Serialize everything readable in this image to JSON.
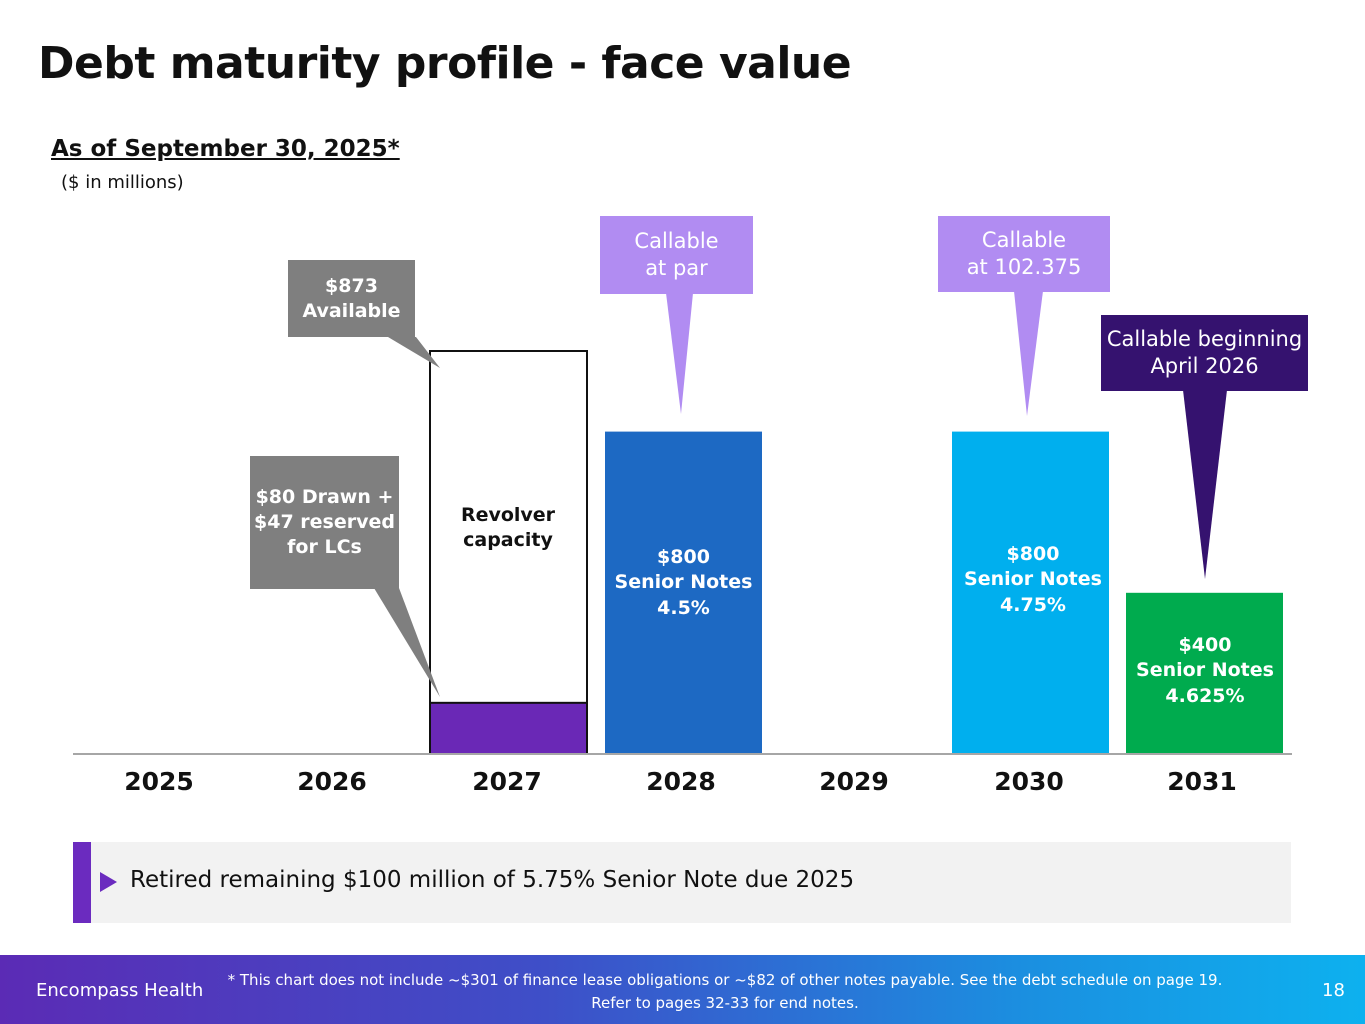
{
  "page": {
    "title": "Debt maturity profile - face value",
    "subtitle": "As of September 30, 2025*",
    "units": "($ in millions)"
  },
  "chart_data": {
    "type": "bar",
    "title": "Debt maturity profile - face value",
    "ylabel": "$ in millions",
    "categories": [
      "2025",
      "2026",
      "2027",
      "2028",
      "2029",
      "2030",
      "2031"
    ],
    "ylim": [
      0,
      1100
    ],
    "series": [
      {
        "name": "Revolver drawn + reserved for LCs",
        "values": [
          0,
          0,
          127,
          0,
          0,
          0,
          0
        ],
        "color": "#6a28b6"
      },
      {
        "name": "Revolver available capacity",
        "values": [
          0,
          0,
          873,
          0,
          0,
          0,
          0
        ],
        "color": "#ffffff"
      },
      {
        "name": "$800 Senior Notes 4.5%",
        "values": [
          0,
          0,
          0,
          800,
          0,
          0,
          0
        ],
        "color": "#1d69c3"
      },
      {
        "name": "$800 Senior Notes 4.75%",
        "values": [
          0,
          0,
          0,
          0,
          0,
          800,
          0
        ],
        "color": "#00afee"
      },
      {
        "name": "$400 Senior Notes 4.625%",
        "values": [
          0,
          0,
          0,
          0,
          0,
          0,
          400
        ],
        "color": "#00ab4e"
      }
    ],
    "bar_labels": {
      "revolver": [
        "Revolver",
        "capacity"
      ],
      "notes_2028": [
        "$800",
        "Senior Notes",
        "4.5%"
      ],
      "notes_2030": [
        "$800",
        "Senior Notes",
        "4.75%"
      ],
      "notes_2031": [
        "$400",
        "Senior Notes",
        "4.625%"
      ]
    },
    "annotations": {
      "available": [
        "$873",
        "Available"
      ],
      "drawn": [
        "$80 Drawn +",
        "$47 reserved",
        "for LCs"
      ],
      "callable_2028": [
        "Callable",
        "at par"
      ],
      "callable_2030": [
        "Callable",
        "at 102.375"
      ],
      "callable_2031": [
        "Callable beginning",
        "April 2026"
      ]
    },
    "colors": {
      "axis": "#a6a6a6",
      "callout_gray": "#7f7f7f",
      "callout_lilac": "#b18cf2",
      "callout_navy": "#35126f"
    }
  },
  "takeaway": {
    "text": "Retired remaining $100 million of 5.75% Senior Note due 2025"
  },
  "footer": {
    "company": "Encompass Health",
    "note_line1": "* This chart does not include ~$301 of finance lease obligations or ~$82 of other notes payable. See the debt schedule on page 19.",
    "note_line2": "Refer to pages 32-33 for end notes.",
    "page_number": "18"
  }
}
